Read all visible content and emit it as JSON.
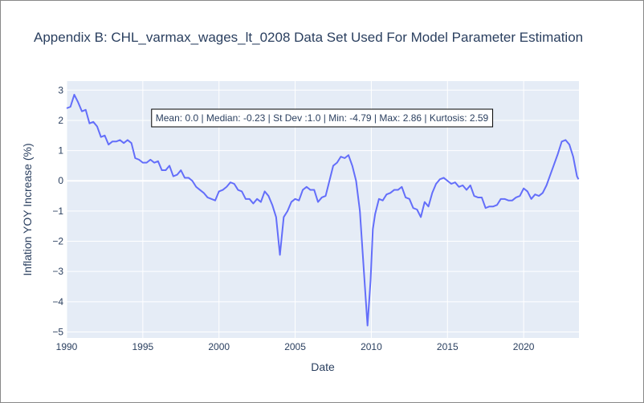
{
  "chart_data": {
    "type": "line",
    "title": "Appendix B: CHL_varmax_wages_lt_0208 Data Set Used For Model Parameter Estimation",
    "x_label": "Date",
    "y_label": "Inflation YOY Increase (%)",
    "annotation": "Mean: 0.0 | Median: -0.23 | St Dev :1.0 | Min: -4.79 | Max: 2.86 | Kurtosis: 2.59",
    "xlim": [
      1990,
      2023.63
    ],
    "xticks": [
      1990,
      1995,
      2000,
      2005,
      2010,
      2015,
      2020
    ],
    "ylim": [
      -5.2,
      3.3
    ],
    "yticks": [
      {
        "value": -5,
        "label": "−5"
      },
      {
        "value": -4,
        "label": "−4"
      },
      {
        "value": -3,
        "label": "−3"
      },
      {
        "value": -2,
        "label": "−2"
      },
      {
        "value": -1,
        "label": "−1"
      },
      0,
      1,
      2,
      3
    ],
    "grid": true,
    "x": [
      1990.0,
      1990.25,
      1990.5,
      1990.75,
      1991.0,
      1991.25,
      1991.5,
      1991.75,
      1992.0,
      1992.25,
      1992.5,
      1992.75,
      1993.0,
      1993.25,
      1993.5,
      1993.75,
      1994.0,
      1994.25,
      1994.5,
      1994.75,
      1995.0,
      1995.25,
      1995.5,
      1995.75,
      1996.0,
      1996.25,
      1996.5,
      1996.75,
      1997.0,
      1997.25,
      1997.5,
      1997.75,
      1998.0,
      1998.25,
      1998.5,
      1998.75,
      1999.0,
      1999.25,
      1999.5,
      1999.75,
      2000.0,
      2000.25,
      2000.5,
      2000.75,
      2001.0,
      2001.25,
      2001.5,
      2001.75,
      2002.0,
      2002.25,
      2002.5,
      2002.75,
      2003.0,
      2003.25,
      2003.5,
      2003.75,
      2004.0,
      2004.25,
      2004.5,
      2004.75,
      2005.0,
      2005.25,
      2005.5,
      2005.75,
      2006.0,
      2006.25,
      2006.5,
      2006.75,
      2007.0,
      2007.25,
      2007.5,
      2007.75,
      2008.0,
      2008.25,
      2008.5,
      2008.75,
      2009.0,
      2009.25,
      2009.5,
      2009.75,
      2009.95,
      2010.1,
      2010.25,
      2010.5,
      2010.75,
      2011.0,
      2011.25,
      2011.5,
      2011.75,
      2012.0,
      2012.25,
      2012.5,
      2012.75,
      2013.0,
      2013.25,
      2013.5,
      2013.75,
      2014.0,
      2014.25,
      2014.5,
      2014.75,
      2015.0,
      2015.25,
      2015.5,
      2015.75,
      2016.0,
      2016.25,
      2016.5,
      2016.75,
      2017.0,
      2017.25,
      2017.5,
      2017.75,
      2018.0,
      2018.25,
      2018.5,
      2018.75,
      2019.0,
      2019.25,
      2019.5,
      2019.75,
      2020.0,
      2020.25,
      2020.5,
      2020.75,
      2021.0,
      2021.25,
      2021.5,
      2021.75,
      2022.0,
      2022.25,
      2022.5,
      2022.75,
      2023.0,
      2023.25,
      2023.5,
      2023.6
    ],
    "series": [
      {
        "name": "CHL_varmax_wages_lt_0208",
        "color": "#636efa",
        "values": [
          2.4,
          2.45,
          2.85,
          2.6,
          2.3,
          2.35,
          1.9,
          1.95,
          1.8,
          1.45,
          1.5,
          1.2,
          1.3,
          1.3,
          1.35,
          1.25,
          1.35,
          1.25,
          0.75,
          0.7,
          0.6,
          0.6,
          0.7,
          0.6,
          0.65,
          0.35,
          0.35,
          0.5,
          0.15,
          0.2,
          0.35,
          0.1,
          0.1,
          0.0,
          -0.2,
          -0.3,
          -0.4,
          -0.55,
          -0.6,
          -0.65,
          -0.35,
          -0.3,
          -0.2,
          -0.05,
          -0.1,
          -0.3,
          -0.35,
          -0.6,
          -0.6,
          -0.75,
          -0.6,
          -0.7,
          -0.35,
          -0.5,
          -0.8,
          -1.2,
          -2.45,
          -1.2,
          -1.0,
          -0.7,
          -0.6,
          -0.65,
          -0.3,
          -0.2,
          -0.3,
          -0.3,
          -0.7,
          -0.55,
          -0.5,
          0.0,
          0.5,
          0.6,
          0.8,
          0.75,
          0.85,
          0.5,
          0.0,
          -1.0,
          -2.9,
          -4.79,
          -3.3,
          -1.6,
          -1.1,
          -0.6,
          -0.65,
          -0.45,
          -0.4,
          -0.3,
          -0.3,
          -0.2,
          -0.55,
          -0.6,
          -0.9,
          -0.95,
          -1.2,
          -0.7,
          -0.85,
          -0.4,
          -0.1,
          0.05,
          0.1,
          0.0,
          -0.1,
          -0.05,
          -0.2,
          -0.15,
          -0.3,
          -0.15,
          -0.5,
          -0.55,
          -0.55,
          -0.9,
          -0.85,
          -0.85,
          -0.8,
          -0.6,
          -0.6,
          -0.65,
          -0.65,
          -0.55,
          -0.5,
          -0.25,
          -0.35,
          -0.6,
          -0.45,
          -0.5,
          -0.4,
          -0.15,
          0.2,
          0.55,
          0.9,
          1.3,
          1.35,
          1.2,
          0.8,
          0.15,
          0.05
        ]
      }
    ]
  }
}
